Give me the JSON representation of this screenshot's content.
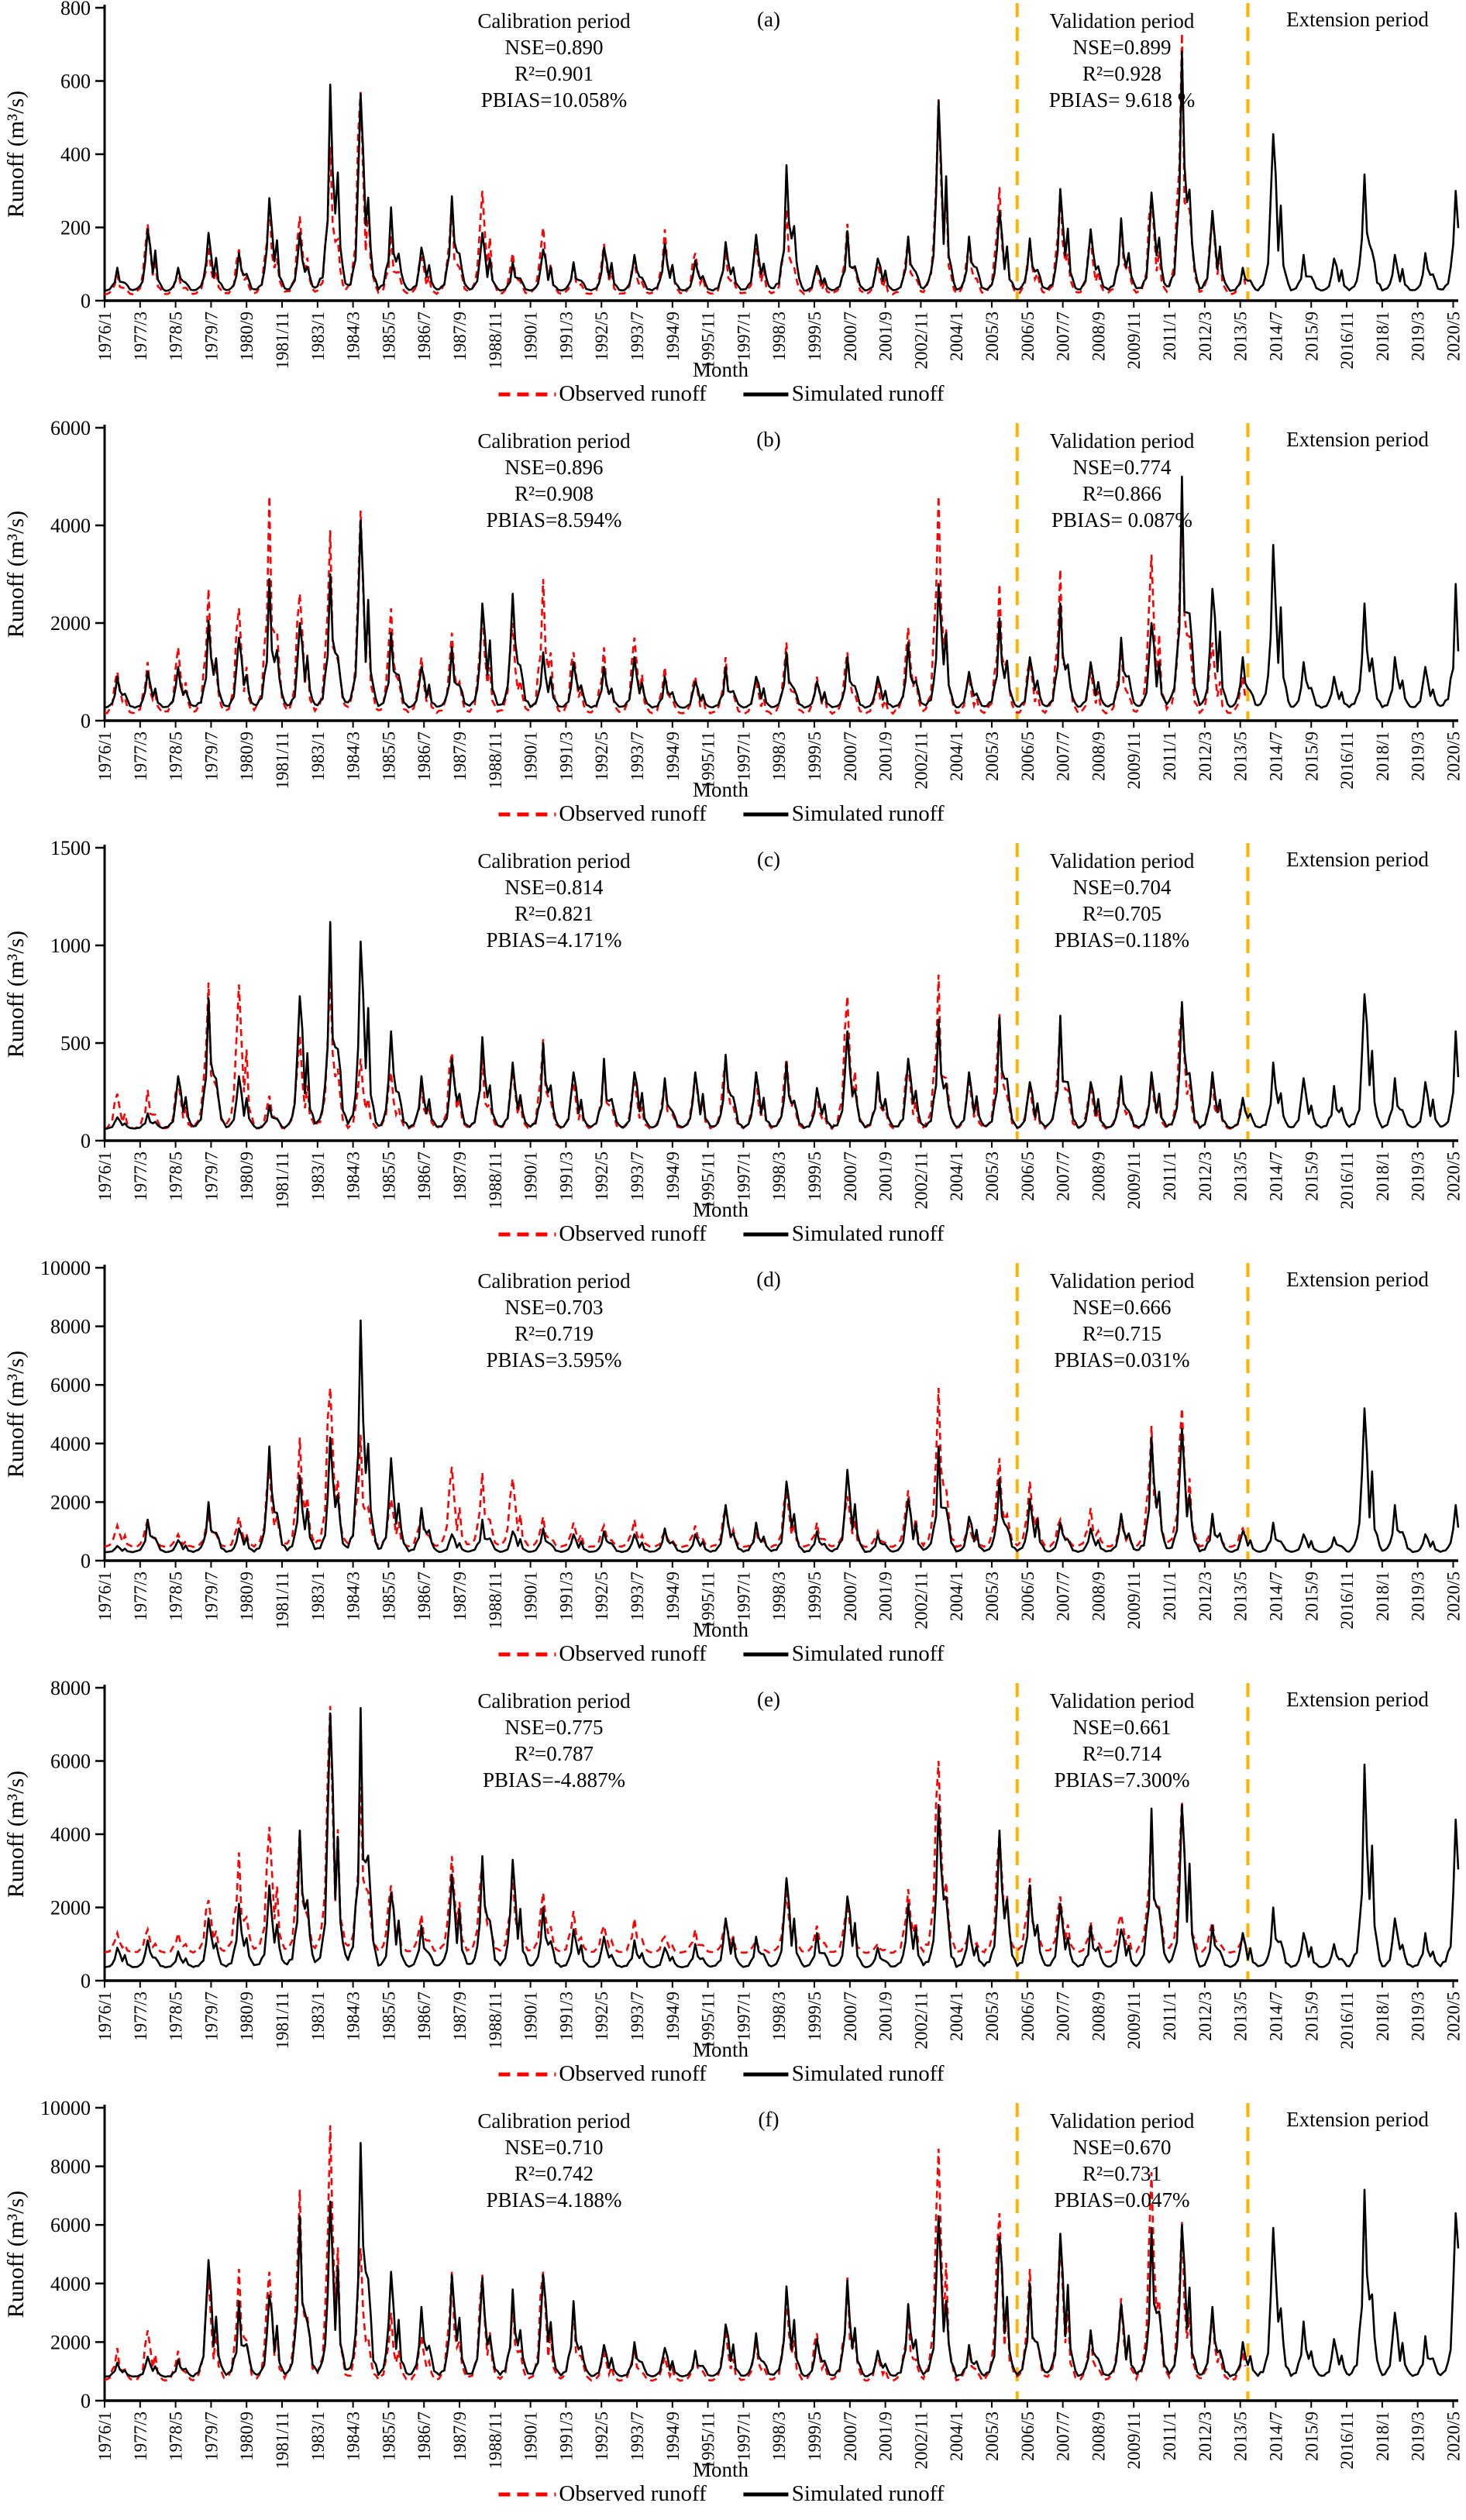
{
  "axis": {
    "x_label": "Month",
    "y_label": "Runoff (m³/s)"
  },
  "legend": {
    "observed": "Observed runoff",
    "simulated": "Simulated runoff",
    "observed_color": "#FE0000",
    "simulated_color": "#000000"
  },
  "period_divider_color": "#FFB301",
  "chart_data": {
    "type": "line",
    "x_start": "1976/1",
    "x_end": "2020/7",
    "months_total": 535,
    "validation_start_index": 360,
    "extension_start_index": 451,
    "x_tick_labels": [
      "1976/1",
      "1977/3",
      "1978/5",
      "1979/7",
      "1980/9",
      "1981/11",
      "1983/1",
      "1984/3",
      "1985/5",
      "1986/7",
      "1987/9",
      "1988/11",
      "1990/1",
      "1991/3",
      "1992/5",
      "1993/7",
      "1994/9",
      "1995/11",
      "1997/1",
      "1998/3",
      "1999/5",
      "2000/7",
      "2001/9",
      "2002/11",
      "2004/1",
      "2005/3",
      "2006/5",
      "2007/7",
      "2008/9",
      "2009/11",
      "2011/1",
      "2012/3",
      "2013/5",
      "2014/7",
      "2015/9",
      "2016/11",
      "2018/1",
      "2019/3",
      "2020/5"
    ],
    "x_tick_step_months": 14,
    "synthesis_monthly_shape_observed": [
      0.04,
      0.06,
      0.12,
      0.28,
      0.62,
      1.0,
      0.52,
      0.3,
      0.42,
      0.17,
      0.08,
      0.04
    ],
    "synthesis_monthly_shape_simulated": [
      0.03,
      0.05,
      0.09,
      0.2,
      0.45,
      1.0,
      0.6,
      0.35,
      0.5,
      0.22,
      0.1,
      0.05
    ],
    "panels": [
      {
        "label": "(a)",
        "ylim": [
          0,
          800
        ],
        "yticks": [
          0,
          200,
          400,
          600,
          800
        ],
        "calibration": {
          "title": "Calibration period",
          "nse": "NSE=0.890",
          "r2": "R²=0.901",
          "pbias": "PBIAS=10.058%"
        },
        "validation": {
          "title": "Validation period",
          "nse": "NSE=0.899",
          "r2": "R²=0.928",
          "pbias": "PBIAS= 9.618 %"
        },
        "extension": {
          "title": "Extension period"
        },
        "observed": {
          "baseflow": 15,
          "annual_peaks": [
            70,
            210,
            80,
            150,
            140,
            275,
            230,
            420,
            570,
            180,
            120,
            270,
            300,
            130,
            200,
            90,
            155,
            110,
            195,
            130,
            140,
            150,
            250,
            85,
            210,
            100,
            170,
            550,
            150,
            310,
            150,
            300,
            170,
            215,
            280,
            730,
            230,
            80
          ]
        },
        "simulated": {
          "baseflow": 25,
          "annual_peaks": [
            90,
            195,
            90,
            185,
            130,
            280,
            185,
            590,
            565,
            255,
            145,
            285,
            185,
            105,
            140,
            105,
            145,
            125,
            155,
            110,
            160,
            180,
            370,
            95,
            190,
            115,
            175,
            545,
            175,
            245,
            170,
            305,
            195,
            225,
            295,
            680,
            245,
            90,
            455,
            125,
            115,
            345,
            125,
            130,
            300
          ]
        }
      },
      {
        "label": "(b)",
        "ylim": [
          0,
          6000
        ],
        "yticks": [
          0,
          2000,
          4000,
          6000
        ],
        "calibration": {
          "title": "Calibration period",
          "nse": "NSE=0.896",
          "r2": "R²=0.908",
          "pbias": "PBIAS=8.594%"
        },
        "validation": {
          "title": "Validation period",
          "nse": "NSE=0.774",
          "r2": "R²=0.866",
          "pbias": "PBIAS= 0.087%"
        },
        "extension": {
          "title": "Extension period"
        },
        "observed": {
          "baseflow": 120,
          "annual_peaks": [
            1000,
            1200,
            1500,
            2700,
            2300,
            4600,
            2600,
            3900,
            4300,
            2300,
            1300,
            1800,
            2300,
            2000,
            2900,
            1400,
            1500,
            1700,
            1100,
            900,
            1300,
            800,
            1600,
            900,
            1400,
            800,
            1900,
            4600,
            900,
            2800,
            1200,
            3100,
            1000,
            1500,
            3400,
            4400,
            1600,
            900
          ]
        },
        "simulated": {
          "baseflow": 250,
          "annual_peaks": [
            900,
            1000,
            1100,
            2050,
            1700,
            2900,
            2000,
            3000,
            4100,
            1800,
            1100,
            1500,
            2400,
            2600,
            1400,
            1200,
            1100,
            1300,
            900,
            800,
            1100,
            900,
            1400,
            800,
            1300,
            900,
            1600,
            2800,
            1000,
            2100,
            1300,
            2400,
            1200,
            1700,
            2000,
            5000,
            2700,
            1300,
            3600,
            1200,
            900,
            2400,
            1300,
            1100,
            2800
          ]
        }
      },
      {
        "label": "(c)",
        "ylim": [
          0,
          1500
        ],
        "yticks": [
          0,
          500,
          1000,
          1500
        ],
        "calibration": {
          "title": "Calibration period",
          "nse": "NSE=0.814",
          "r2": "R²=0.821",
          "pbias": "PBIAS=4.171%"
        },
        "validation": {
          "title": "Validation period",
          "nse": "NSE=0.704",
          "r2": "R²=0.705",
          "pbias": "PBIAS=0.118%"
        },
        "extension": {
          "title": "Extension period"
        },
        "observed": {
          "baseflow": 55,
          "annual_peaks": [
            240,
            260,
            300,
            810,
            800,
            230,
            540,
            830,
            420,
            350,
            280,
            450,
            430,
            350,
            520,
            300,
            380,
            300,
            300,
            350,
            420,
            330,
            420,
            250,
            740,
            320,
            380,
            850,
            300,
            650,
            280,
            600,
            280,
            320,
            330,
            690,
            320,
            200
          ]
        },
        "simulated": {
          "baseflow": 60,
          "annual_peaks": [
            120,
            140,
            330,
            730,
            330,
            180,
            740,
            1120,
            1020,
            560,
            330,
            420,
            530,
            400,
            500,
            350,
            420,
            350,
            320,
            350,
            440,
            350,
            400,
            270,
            560,
            350,
            420,
            620,
            350,
            630,
            300,
            640,
            300,
            330,
            350,
            710,
            350,
            220,
            400,
            320,
            280,
            750,
            320,
            300,
            560
          ]
        }
      },
      {
        "label": "(d)",
        "ylim": [
          0,
          10000
        ],
        "yticks": [
          0,
          2000,
          4000,
          6000,
          8000,
          10000
        ],
        "calibration": {
          "title": "Calibration period",
          "nse": "NSE=0.703",
          "r2": "R²=0.719",
          "pbias": "PBIAS=3.595%"
        },
        "validation": {
          "title": "Validation period",
          "nse": "NSE=0.666",
          "r2": "R²=0.715",
          "pbias": "PBIAS=0.031%"
        },
        "extension": {
          "title": "Extension period"
        },
        "observed": {
          "baseflow": 450,
          "annual_peaks": [
            1200,
            1400,
            900,
            1600,
            1500,
            3200,
            4200,
            5900,
            4300,
            2100,
            1700,
            3200,
            3000,
            2800,
            1500,
            1300,
            1200,
            1400,
            1000,
            1200,
            1800,
            1000,
            2300,
            1300,
            2200,
            1000,
            2400,
            5900,
            1200,
            3500,
            2700,
            1400,
            1800,
            1300,
            4600,
            5200,
            1400,
            1100
          ]
        },
        "simulated": {
          "baseflow": 280,
          "annual_peaks": [
            500,
            1400,
            700,
            2000,
            1100,
            3900,
            2900,
            4200,
            8200,
            3500,
            1800,
            900,
            1400,
            1000,
            1100,
            900,
            1000,
            900,
            1100,
            900,
            1900,
            1300,
            2700,
            1000,
            3100,
            900,
            2100,
            3900,
            1500,
            2800,
            2100,
            1300,
            1100,
            1600,
            4200,
            4500,
            1600,
            1000,
            1300,
            900,
            800,
            5200,
            1900,
            900,
            1900
          ]
        }
      },
      {
        "label": "(e)",
        "ylim": [
          0,
          8000
        ],
        "yticks": [
          0,
          2000,
          4000,
          6000,
          8000
        ],
        "calibration": {
          "title": "Calibration period",
          "nse": "NSE=0.775",
          "r2": "R²=0.787",
          "pbias": "PBIAS=-4.887%"
        },
        "validation": {
          "title": "Validation period",
          "nse": "NSE=0.661",
          "r2": "R²=0.714",
          "pbias": "PBIAS=7.300%"
        },
        "extension": {
          "title": "Extension period"
        },
        "observed": {
          "baseflow": 750,
          "annual_peaks": [
            1300,
            1400,
            1300,
            2200,
            3500,
            4200,
            4100,
            7500,
            5300,
            2600,
            1800,
            3400,
            3200,
            2900,
            2400,
            1900,
            1500,
            1700,
            1200,
            1400,
            1600,
            1100,
            2400,
            1500,
            2100,
            1000,
            2500,
            6000,
            1400,
            4000,
            2800,
            2300,
            1600,
            1800,
            4400,
            4900,
            1600,
            1200
          ]
        },
        "simulated": {
          "baseflow": 350,
          "annual_peaks": [
            900,
            1100,
            800,
            1700,
            2100,
            2600,
            4100,
            7300,
            7450,
            2400,
            1500,
            2900,
            3400,
            3300,
            2000,
            1400,
            1200,
            1100,
            900,
            1000,
            1700,
            1200,
            2800,
            1300,
            2300,
            900,
            2100,
            4800,
            1500,
            4100,
            2600,
            2100,
            1500,
            1400,
            4700,
            4800,
            1500,
            1300,
            2000,
            1300,
            1000,
            5900,
            1700,
            1300,
            4400
          ]
        }
      },
      {
        "label": "(f)",
        "ylim": [
          0,
          10000
        ],
        "yticks": [
          0,
          2000,
          4000,
          6000,
          8000,
          10000
        ],
        "calibration": {
          "title": "Calibration period",
          "nse": "NSE=0.710",
          "r2": "R²=0.742",
          "pbias": "PBIAS=4.188%"
        },
        "validation": {
          "title": "Validation period",
          "nse": "NSE=0.670",
          "r2": "R²=0.731",
          "pbias": "PBIAS=0.047%"
        },
        "extension": {
          "title": "Extension period"
        },
        "observed": {
          "baseflow": 650,
          "annual_peaks": [
            1800,
            2400,
            1700,
            4200,
            4500,
            4400,
            7200,
            9400,
            5200,
            3000,
            2200,
            4400,
            4300,
            3300,
            4400,
            3200,
            1600,
            1800,
            1500,
            1600,
            2400,
            2000,
            3600,
            2300,
            4200,
            1500,
            3000,
            8600,
            1800,
            6400,
            4500,
            5500,
            2200,
            3500,
            7800,
            6100,
            2900,
            1700
          ]
        },
        "simulated": {
          "baseflow": 800,
          "annual_peaks": [
            1300,
            1500,
            1400,
            4800,
            3400,
            3600,
            6300,
            6800,
            8800,
            4400,
            3200,
            4300,
            4200,
            3800,
            4300,
            3400,
            1900,
            2000,
            1800,
            1700,
            2600,
            2300,
            3900,
            2100,
            4100,
            1700,
            3300,
            6300,
            1900,
            5600,
            4000,
            5700,
            2400,
            3300,
            5900,
            6000,
            3200,
            2000,
            5900,
            2700,
            2100,
            7200,
            3000,
            2200,
            6400
          ]
        }
      }
    ]
  }
}
